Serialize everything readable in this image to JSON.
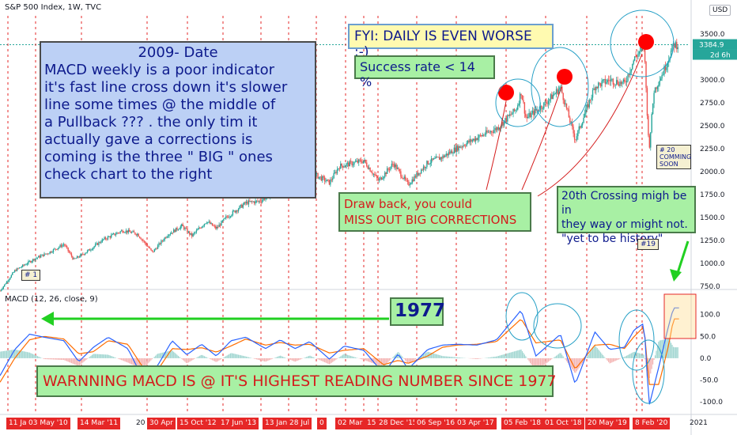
{
  "header": {
    "symbol_title": "S&P 500 Index, 1W, TVC",
    "currency": "USD"
  },
  "price_badges": {
    "last_price": "3384.9",
    "countdown": "2d 6h"
  },
  "annotations": {
    "box_2009_title": "2009- Date",
    "box_2009_lines": [
      "MACD weekly is a poor indicator",
      "it's fast line cross down it's slower",
      "line some times @ the middle of",
      "a Pullback ??? . the only tim it",
      "actually gave a corrections is",
      "coming is the three \" BIG \" ones",
      "check chart to the right"
    ],
    "fyi": "FYI: DAILY IS EVEN WORSE :-)",
    "success": "Success rate < 14 %",
    "drawback_line1": "Draw back, you could",
    "drawback_line2": "MISS OUT BIG CORRECTIONS",
    "crossing_line1": "20th Crossing migh be in",
    "crossing_line2": "they way or might not.",
    "crossing_line3": "\"yet to be history\"",
    "year_1977": "1977",
    "warning": "WARNNING MACD IS @ IT'S HIGHEST READING NUMBER SINCE 1977",
    "tag_1": "# 1",
    "tag_19": "#19",
    "tag_20_line1": "# 20",
    "tag_20_line2": "COMMING",
    "tag_20_line3": "SOON"
  },
  "macd_label": "MACD (12, 26, close, 9)",
  "x_axis_red_labels": [
    "11 Ja",
    "03 May '10",
    "14 Mar '11",
    "30 Apr",
    "15 Oct '12",
    "17 Jun '13",
    "13 Jan '14",
    "28 Jul",
    "0",
    "02 Mar '15",
    "15",
    "28 Dec '15",
    "06 Sep '16",
    "03 Apr '17",
    "05 Feb '18",
    "01 Oct '18",
    "20 May '19",
    "8 Feb '20"
  ],
  "x_axis_year_labels": [
    "20",
    "2021"
  ],
  "colors": {
    "up": "#26a69a",
    "down": "#ef5350",
    "macd_line": "#2962ff",
    "signal_line": "#ff6d00",
    "vline": "#e62727",
    "marker": "#ff0000"
  },
  "chart_data": [
    {
      "type": "candlestick",
      "title": "S&P 500 Index, 1W, TVC",
      "ylabel": "",
      "ylim": [
        750,
        3700
      ],
      "y_ticks": [
        750.0,
        1000.0,
        1250.0,
        1500.0,
        1750.0,
        2000.0,
        2250.0,
        2500.0,
        2750.0,
        3000.0,
        3250.0,
        3500.0
      ],
      "x_start": "2009-03",
      "x_end": "2020-08",
      "close_path": [
        [
          "2009-03",
          700
        ],
        [
          "2009-06",
          920
        ],
        [
          "2009-10",
          1050
        ],
        [
          "2010-01",
          1120
        ],
        [
          "2010-04",
          1210
        ],
        [
          "2010-06",
          1040
        ],
        [
          "2010-09",
          1140
        ],
        [
          "2010-12",
          1260
        ],
        [
          "2011-04",
          1360
        ],
        [
          "2011-07",
          1320
        ],
        [
          "2011-10",
          1120
        ],
        [
          "2012-01",
          1310
        ],
        [
          "2012-04",
          1410
        ],
        [
          "2012-06",
          1300
        ],
        [
          "2012-09",
          1460
        ],
        [
          "2012-11",
          1380
        ],
        [
          "2013-01",
          1500
        ],
        [
          "2013-05",
          1660
        ],
        [
          "2013-08",
          1680
        ],
        [
          "2013-12",
          1840
        ],
        [
          "2014-04",
          1880
        ],
        [
          "2014-07",
          1970
        ],
        [
          "2014-10",
          1880
        ],
        [
          "2014-12",
          2060
        ],
        [
          "2015-05",
          2120
        ],
        [
          "2015-08",
          1900
        ],
        [
          "2015-11",
          2090
        ],
        [
          "2016-02",
          1860
        ],
        [
          "2016-06",
          2100
        ],
        [
          "2016-09",
          2160
        ],
        [
          "2016-12",
          2260
        ],
        [
          "2017-04",
          2370
        ],
        [
          "2017-08",
          2470
        ],
        [
          "2017-12",
          2680
        ],
        [
          "2018-01",
          2870
        ],
        [
          "2018-02",
          2580
        ],
        [
          "2018-06",
          2750
        ],
        [
          "2018-09",
          2920
        ],
        [
          "2018-12",
          2350
        ],
        [
          "2019-04",
          2930
        ],
        [
          "2019-07",
          3000
        ],
        [
          "2019-10",
          2960
        ],
        [
          "2019-12",
          3230
        ],
        [
          "2020-02",
          3380
        ],
        [
          "2020-03",
          2230
        ],
        [
          "2020-04",
          2880
        ],
        [
          "2020-06",
          3100
        ],
        [
          "2020-08",
          3384.9
        ]
      ],
      "last_price": 3384.9
    },
    {
      "type": "line",
      "title": "MACD (12, 26, close, 9)",
      "ylim": [
        -125,
        150
      ],
      "y_ticks": [
        -100.0,
        -50.0,
        0.0,
        50.0,
        100.0
      ],
      "series": [
        {
          "name": "MACD",
          "points": [
            [
              "2009-03",
              -40
            ],
            [
              "2009-06",
              20
            ],
            [
              "2009-09",
              55
            ],
            [
              "2009-12",
              48
            ],
            [
              "2010-04",
              40
            ],
            [
              "2010-07",
              -8
            ],
            [
              "2010-10",
              25
            ],
            [
              "2011-01",
              48
            ],
            [
              "2011-05",
              22
            ],
            [
              "2011-08",
              -45
            ],
            [
              "2011-11",
              -18
            ],
            [
              "2012-02",
              40
            ],
            [
              "2012-05",
              8
            ],
            [
              "2012-08",
              32
            ],
            [
              "2012-11",
              5
            ],
            [
              "2013-02",
              40
            ],
            [
              "2013-05",
              48
            ],
            [
              "2013-09",
              22
            ],
            [
              "2013-12",
              42
            ],
            [
              "2014-03",
              22
            ],
            [
              "2014-06",
              38
            ],
            [
              "2014-10",
              -2
            ],
            [
              "2015-01",
              28
            ],
            [
              "2015-05",
              18
            ],
            [
              "2015-09",
              -35
            ],
            [
              "2015-12",
              10
            ],
            [
              "2016-02",
              -25
            ],
            [
              "2016-06",
              20
            ],
            [
              "2016-09",
              30
            ],
            [
              "2016-12",
              32
            ],
            [
              "2017-04",
              30
            ],
            [
              "2017-08",
              42
            ],
            [
              "2018-01",
              110
            ],
            [
              "2018-04",
              5
            ],
            [
              "2018-09",
              55
            ],
            [
              "2018-12",
              -60
            ],
            [
              "2019-04",
              60
            ],
            [
              "2019-07",
              20
            ],
            [
              "2019-10",
              25
            ],
            [
              "2019-12",
              65
            ],
            [
              "2020-02",
              80
            ],
            [
              "2020-03",
              -110
            ],
            [
              "2020-05",
              -20
            ],
            [
              "2020-07",
              75
            ],
            [
              "2020-08",
              115
            ]
          ]
        },
        {
          "name": "Signal",
          "points": [
            [
              "2009-03",
              -55
            ],
            [
              "2009-06",
              0
            ],
            [
              "2009-09",
              42
            ],
            [
              "2009-12",
              50
            ],
            [
              "2010-04",
              44
            ],
            [
              "2010-07",
              10
            ],
            [
              "2010-10",
              15
            ],
            [
              "2011-01",
              40
            ],
            [
              "2011-05",
              32
            ],
            [
              "2011-08",
              -20
            ],
            [
              "2011-11",
              -28
            ],
            [
              "2012-02",
              22
            ],
            [
              "2012-05",
              20
            ],
            [
              "2012-08",
              24
            ],
            [
              "2012-11",
              14
            ],
            [
              "2013-02",
              28
            ],
            [
              "2013-05",
              44
            ],
            [
              "2013-09",
              30
            ],
            [
              "2013-12",
              36
            ],
            [
              "2014-03",
              30
            ],
            [
              "2014-06",
              32
            ],
            [
              "2014-10",
              12
            ],
            [
              "2015-01",
              18
            ],
            [
              "2015-05",
              22
            ],
            [
              "2015-09",
              -15
            ],
            [
              "2015-12",
              -5
            ],
            [
              "2016-02",
              -12
            ],
            [
              "2016-06",
              5
            ],
            [
              "2016-09",
              25
            ],
            [
              "2016-12",
              30
            ],
            [
              "2017-04",
              32
            ],
            [
              "2017-08",
              38
            ],
            [
              "2018-01",
              90
            ],
            [
              "2018-04",
              35
            ],
            [
              "2018-09",
              42
            ],
            [
              "2018-12",
              -25
            ],
            [
              "2019-04",
              30
            ],
            [
              "2019-07",
              32
            ],
            [
              "2019-10",
              22
            ],
            [
              "2019-12",
              50
            ],
            [
              "2020-02",
              72
            ],
            [
              "2020-03",
              -60
            ],
            [
              "2020-05",
              -60
            ],
            [
              "2020-07",
              30
            ],
            [
              "2020-08",
              90
            ]
          ]
        }
      ]
    }
  ]
}
